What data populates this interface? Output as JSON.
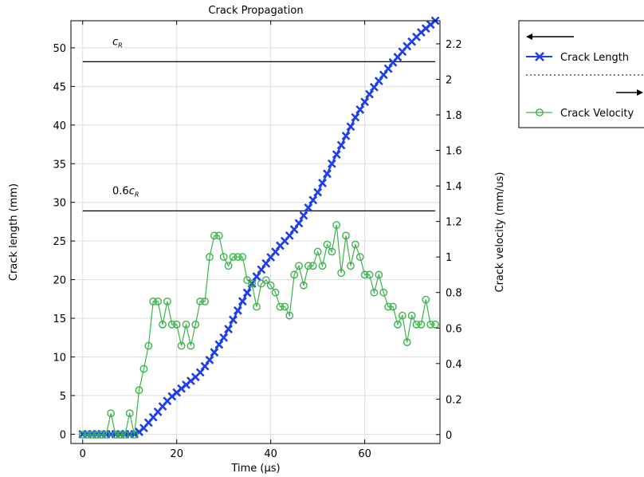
{
  "chart_data": {
    "type": "line",
    "title": "Crack Propagation",
    "xlabel": "Time (µs)",
    "ylabel_left": "Crack length (mm)",
    "ylabel_right": "Crack velocity (mm/us)",
    "xlim": [
      -2.5,
      76
    ],
    "ylim_left": [
      -1.2,
      53.5
    ],
    "ylim_right": [
      -0.05,
      2.33
    ],
    "x_ticks": [
      0,
      20,
      40,
      60
    ],
    "y_ticks_left": [
      0,
      5,
      10,
      15,
      20,
      25,
      30,
      35,
      40,
      45,
      50
    ],
    "y_ticks_right": [
      0,
      0.2,
      0.4,
      0.6,
      0.8,
      1,
      1.2,
      1.4,
      1.6,
      1.8,
      2,
      2.2
    ],
    "grid": true,
    "legend_position": "top-right, outside plot",
    "reference_lines": [
      {
        "label_main": "c",
        "label_sub": "R",
        "prefix": "",
        "y_left": 48.2
      },
      {
        "label_main": "c",
        "label_sub": "R",
        "prefix": "0.6",
        "y_left": 28.9
      }
    ],
    "series": [
      {
        "name": "Crack Length",
        "axis": "left",
        "color": "#1f3fe6",
        "marker": "x",
        "x": [
          0,
          1,
          2,
          3,
          4,
          5,
          6,
          7,
          8,
          9,
          10,
          11,
          12,
          13,
          14,
          15,
          16,
          17,
          18,
          19,
          20,
          21,
          22,
          23,
          24,
          25,
          26,
          27,
          28,
          29,
          30,
          31,
          32,
          33,
          34,
          35,
          36,
          37,
          38,
          39,
          40,
          41,
          42,
          43,
          44,
          45,
          46,
          47,
          48,
          49,
          50,
          51,
          52,
          53,
          54,
          55,
          56,
          57,
          58,
          59,
          60,
          61,
          62,
          63,
          64,
          65,
          66,
          67,
          68,
          69,
          70,
          71,
          72,
          73,
          74,
          75
        ],
        "y": [
          0,
          0,
          0,
          0,
          0,
          0,
          0,
          0,
          0,
          0,
          0,
          0,
          0.3,
          0.8,
          1.5,
          2.2,
          2.9,
          3.6,
          4.3,
          4.9,
          5.4,
          5.9,
          6.4,
          6.9,
          7.4,
          8.0,
          8.8,
          9.6,
          10.6,
          11.6,
          12.5,
          13.6,
          14.8,
          16.0,
          17.2,
          18.3,
          19.5,
          20.4,
          21.3,
          22.1,
          22.9,
          23.6,
          24.4,
          25.0,
          25.7,
          26.5,
          27.3,
          28.3,
          29.3,
          30.3,
          31.3,
          32.5,
          33.7,
          35.0,
          36.2,
          37.4,
          38.6,
          39.8,
          41.0,
          42.0,
          43.0,
          44.0,
          44.9,
          45.7,
          46.5,
          47.3,
          48.1,
          48.8,
          49.5,
          50.2,
          50.8,
          51.4,
          52.0,
          52.5,
          53.0,
          53.5
        ]
      },
      {
        "name": "Crack Velocity",
        "axis": "right",
        "color": "#3bb34a",
        "marker": "o",
        "x": [
          0,
          1,
          2,
          3,
          4,
          5,
          6,
          7,
          8,
          9,
          10,
          11,
          12,
          13,
          14,
          15,
          16,
          17,
          18,
          19,
          20,
          21,
          22,
          23,
          24,
          25,
          26,
          27,
          28,
          29,
          30,
          31,
          32,
          33,
          34,
          35,
          36,
          37,
          38,
          39,
          40,
          41,
          42,
          43,
          44,
          45,
          46,
          47,
          48,
          49,
          50,
          51,
          52,
          53,
          54,
          55,
          56,
          57,
          58,
          59,
          60,
          61,
          62,
          63,
          64,
          65,
          66,
          67,
          68,
          69,
          70,
          71,
          72,
          73,
          74,
          75
        ],
        "y": [
          0,
          0,
          0,
          0,
          0,
          0,
          0.12,
          0,
          0,
          0,
          0.12,
          0,
          0.25,
          0.37,
          0.5,
          0.75,
          0.75,
          0.62,
          0.75,
          0.62,
          0.62,
          0.5,
          0.62,
          0.5,
          0.62,
          0.75,
          0.75,
          1.0,
          1.12,
          1.12,
          1.0,
          0.95,
          1.0,
          1.0,
          1.0,
          0.87,
          0.85,
          0.72,
          0.85,
          0.87,
          0.84,
          0.8,
          0.72,
          0.72,
          0.67,
          0.9,
          0.95,
          0.84,
          0.95,
          0.95,
          1.03,
          0.95,
          1.07,
          1.03,
          1.18,
          0.91,
          1.12,
          0.95,
          1.07,
          1.0,
          0.9,
          0.9,
          0.8,
          0.9,
          0.8,
          0.72,
          0.72,
          0.62,
          0.67,
          0.52,
          0.67,
          0.62,
          0.62,
          0.76,
          0.62,
          0.62
        ]
      }
    ]
  }
}
